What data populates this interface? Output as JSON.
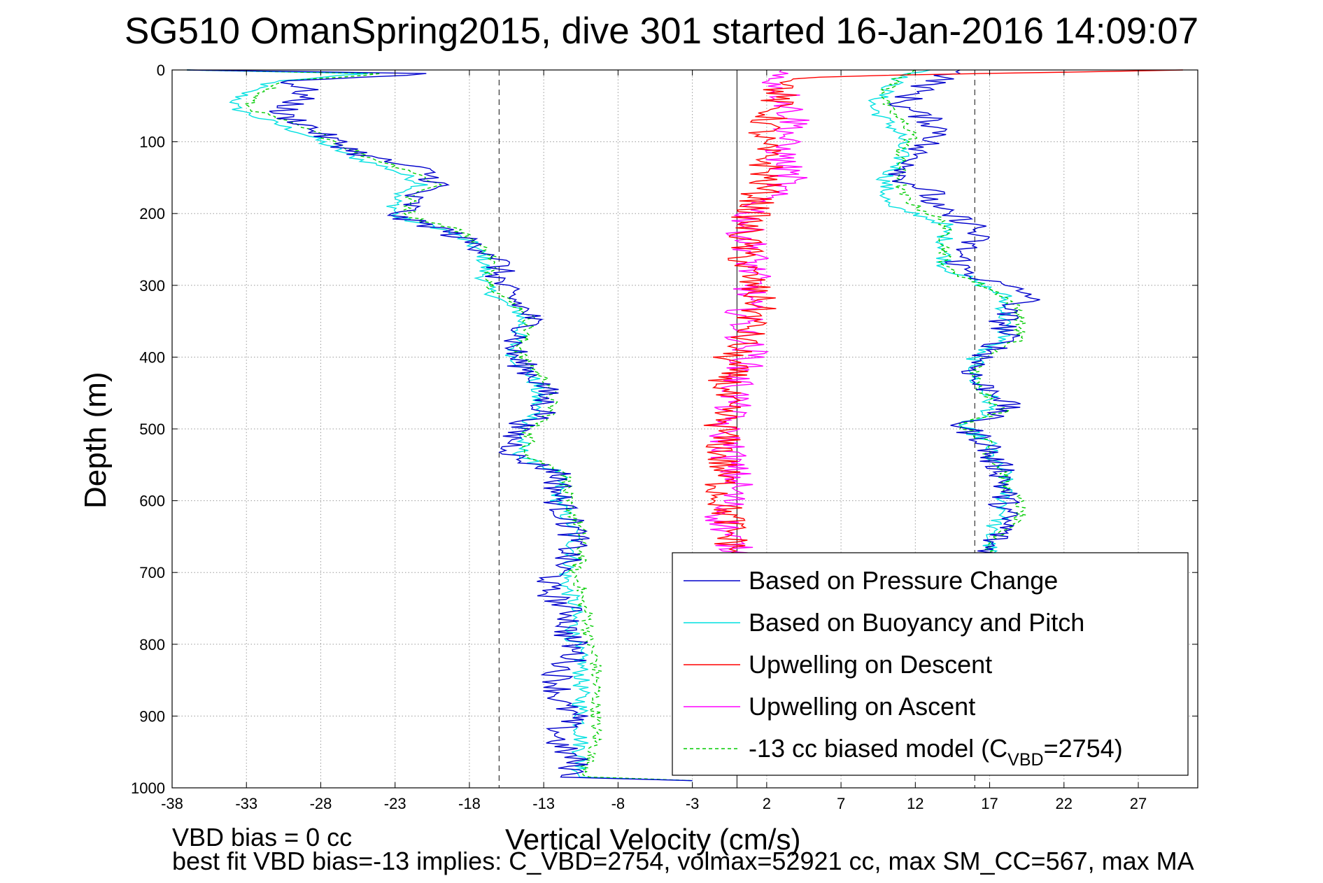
{
  "title": "SG510 OmanSpring2015, dive 301 started 16-Jan-2016 14:09:07",
  "footer": {
    "line1": "VBD bias = 0 cc",
    "line2": "best fit VBD bias=-13 implies: C_VBD=2754, volmax=52921 cc, max SM_CC=567, max MA"
  },
  "chart_data": {
    "type": "line",
    "title": "SG510 OmanSpring2015, dive 301 started 16-Jan-2016 14:09:07",
    "xlabel": "Vertical Velocity (cm/s)",
    "ylabel": "Depth (m)",
    "xlim": [
      -38,
      31
    ],
    "ylim": [
      1000,
      0
    ],
    "y_reversed": true,
    "grid": true,
    "xticks": [
      -38,
      -33,
      -28,
      -23,
      -18,
      -13,
      -8,
      -3,
      2,
      7,
      12,
      17,
      22,
      27
    ],
    "yticks": [
      0,
      100,
      200,
      300,
      400,
      500,
      600,
      700,
      800,
      900,
      1000
    ],
    "reference_lines": {
      "solid_x": [
        0
      ],
      "dashed_x": [
        -16,
        16
      ]
    },
    "legend_position": "bottom-right",
    "legend": [
      {
        "label": "Based on Pressure Change",
        "color": "#0000cc",
        "style": "solid"
      },
      {
        "label": "Based on Buoyancy and Pitch",
        "color": "#00e0e0",
        "style": "solid"
      },
      {
        "label": "Upwelling on Descent",
        "color": "#ff0000",
        "style": "solid"
      },
      {
        "label": "Upwelling on Ascent",
        "color": "#ff00ff",
        "style": "solid"
      },
      {
        "label_main": "-13 cc biased model (C",
        "label_sub": "VBD",
        "label_tail": "=2754)",
        "color": "#00cc00",
        "style": "dashed"
      }
    ],
    "series": [
      {
        "name": "Based on Pressure Change",
        "color": "#0000cc",
        "descent": {
          "depth": [
            0,
            5,
            15,
            30,
            50,
            60,
            75,
            90,
            100,
            120,
            140,
            160,
            175,
            190,
            205,
            220,
            240,
            260,
            280,
            300,
            320,
            340,
            360,
            380,
            400,
            420,
            440,
            460,
            480,
            500,
            520,
            540,
            560,
            580,
            600,
            620,
            640,
            660,
            680,
            700,
            720,
            740,
            760,
            780,
            800,
            820,
            840,
            860,
            880,
            900,
            920,
            940,
            960,
            985,
            990
          ],
          "v": [
            -37,
            -20,
            -30,
            -29,
            -30,
            -31,
            -29,
            -28,
            -27,
            -25,
            -21,
            -20,
            -22,
            -22,
            -23,
            -20,
            -18,
            -16,
            -16,
            -16,
            -15,
            -14,
            -14,
            -15,
            -15,
            -14,
            -13,
            -13,
            -13,
            -15,
            -15,
            -15,
            -12,
            -12,
            -12,
            -11.5,
            -11,
            -11,
            -11.5,
            -12,
            -13,
            -12,
            -11,
            -11.5,
            -11,
            -11,
            -12,
            -12,
            -12,
            -11,
            -12,
            -12,
            -11,
            -11,
            -3
          ]
        },
        "ascent": {
          "depth": [
            0,
            10,
            30,
            50,
            70,
            90,
            110,
            130,
            150,
            170,
            190,
            200,
            215,
            235,
            255,
            275,
            295,
            315,
            335,
            355,
            375,
            395,
            415,
            435,
            455,
            475,
            495,
            520,
            540,
            560,
            580,
            600,
            620,
            640,
            660,
            680
          ],
          "v": [
            15,
            14,
            12,
            11,
            13,
            14,
            12,
            12,
            11,
            13,
            13,
            14,
            16,
            16,
            15,
            15,
            17,
            20,
            18,
            18,
            18,
            17,
            16,
            16,
            18,
            18,
            15,
            17,
            17,
            18,
            18,
            18,
            18,
            18,
            17,
            17
          ]
        }
      },
      {
        "name": "Based on Buoyancy and Pitch",
        "color": "#00e0e0",
        "descent": {
          "depth": [
            0,
            5,
            15,
            30,
            50,
            60,
            75,
            90,
            100,
            120,
            140,
            160,
            175,
            190,
            205,
            220,
            240,
            260,
            280,
            300,
            320,
            340,
            360,
            380,
            400,
            420,
            440,
            460,
            480,
            500,
            520,
            540,
            560,
            580,
            600,
            620,
            640,
            660,
            680,
            700,
            720,
            740,
            760,
            780,
            800,
            820,
            840,
            860,
            880,
            900,
            920,
            940,
            960,
            985,
            990
          ],
          "v": [
            -37,
            -25,
            -31,
            -33,
            -34,
            -33,
            -31,
            -29,
            -28,
            -26,
            -23,
            -21,
            -23,
            -23,
            -23,
            -20,
            -18,
            -17,
            -17,
            -17,
            -16,
            -14.5,
            -14.5,
            -15,
            -15,
            -14,
            -13.5,
            -13.5,
            -13.5,
            -14.5,
            -14.5,
            -14.5,
            -12,
            -12,
            -12,
            -11.5,
            -11,
            -11,
            -11,
            -11.5,
            -11.5,
            -11,
            -11,
            -11,
            -11,
            -10.5,
            -10.5,
            -10.5,
            -10.5,
            -10.5,
            -10.5,
            -10.5,
            -10.5,
            -10.5,
            -3
          ]
        },
        "ascent": {
          "depth": [
            0,
            10,
            30,
            50,
            70,
            90,
            110,
            130,
            150,
            170,
            190,
            200,
            215,
            235,
            255,
            275,
            295,
            315,
            335,
            355,
            375,
            395,
            415,
            435,
            455,
            475,
            495,
            520,
            540,
            560,
            580,
            600,
            620,
            640,
            660,
            680
          ],
          "v": [
            13,
            11,
            10,
            9,
            10,
            11,
            11,
            11,
            10,
            10,
            10,
            12,
            14,
            14,
            14,
            14,
            16,
            18,
            18,
            18,
            18,
            16,
            16,
            16,
            17,
            17,
            15,
            17,
            17,
            18,
            18,
            18,
            18,
            17,
            17,
            17
          ]
        }
      },
      {
        "name": "Upwelling on Descent",
        "color": "#ff0000",
        "depth": [
          0,
          10,
          25,
          50,
          75,
          100,
          125,
          150,
          175,
          200,
          225,
          250,
          275,
          300,
          325,
          350,
          375,
          400,
          425,
          450,
          475,
          500,
          525,
          550,
          575,
          600,
          625,
          650,
          675
        ],
        "v": [
          30,
          5,
          3,
          2.5,
          2,
          1.5,
          2,
          2,
          1.5,
          1,
          0.5,
          0.5,
          0.5,
          1,
          1.5,
          1,
          0.5,
          -0.5,
          -0.5,
          -1,
          -1,
          -1,
          -1,
          -1,
          -1,
          -1,
          -0.5,
          -0.5,
          0
        ]
      },
      {
        "name": "Upwelling on Ascent",
        "color": "#ff00ff",
        "depth": [
          0,
          10,
          25,
          50,
          75,
          100,
          125,
          150,
          175,
          200,
          225,
          250,
          275,
          300,
          325,
          350,
          375,
          400,
          425,
          450,
          475,
          500,
          525,
          550,
          575,
          600,
          625,
          650,
          675
        ],
        "v": [
          3,
          2.5,
          3,
          3.5,
          4,
          3,
          3,
          3.5,
          2,
          1,
          0.5,
          1,
          1,
          1,
          0.5,
          0.5,
          0.5,
          1,
          0,
          0,
          -0.5,
          -1,
          -0.5,
          -0.5,
          0,
          -0.5,
          -1,
          -0.5,
          0
        ]
      },
      {
        "name": "-13 cc biased model (C_VBD=2754)",
        "color": "#00cc00",
        "descent": {
          "depth": [
            0,
            5,
            15,
            30,
            50,
            60,
            75,
            90,
            100,
            120,
            140,
            160,
            175,
            190,
            205,
            220,
            240,
            260,
            280,
            300,
            320,
            340,
            360,
            380,
            400,
            420,
            440,
            460,
            480,
            500,
            520,
            540,
            560,
            580,
            600,
            620,
            640,
            660,
            680,
            700,
            720,
            740,
            760,
            780,
            800,
            820,
            840,
            860,
            880,
            900,
            920,
            940,
            960,
            985,
            990
          ],
          "v": [
            -37,
            -24,
            -30,
            -32,
            -33,
            -32,
            -30,
            -28,
            -27,
            -25,
            -22,
            -20,
            -22,
            -22,
            -22,
            -19,
            -17.5,
            -16.5,
            -16.5,
            -16.5,
            -15.5,
            -14,
            -14,
            -14.5,
            -14.5,
            -13.5,
            -12.5,
            -12.5,
            -12.5,
            -14,
            -14,
            -14,
            -11.5,
            -11.5,
            -11.5,
            -11,
            -10.5,
            -10.5,
            -10.5,
            -11,
            -10.5,
            -10.5,
            -10,
            -10,
            -10,
            -9.5,
            -9.5,
            -9.5,
            -9.5,
            -9.5,
            -9.5,
            -9.5,
            -10,
            -10,
            -3
          ]
        },
        "ascent": {
          "depth": [
            0,
            10,
            30,
            50,
            70,
            90,
            110,
            130,
            150,
            170,
            190,
            200,
            215,
            235,
            255,
            275,
            295,
            315,
            335,
            355,
            375,
            395,
            415,
            435,
            455,
            475,
            495,
            520,
            540,
            560,
            580,
            600,
            620,
            640,
            660,
            680
          ],
          "v": [
            12,
            11,
            10,
            10,
            11,
            12,
            11,
            11,
            11,
            11,
            12,
            13,
            14,
            14,
            14,
            14,
            16,
            18,
            19,
            19,
            19,
            17,
            16,
            16,
            17,
            18,
            15,
            17,
            17,
            18,
            18,
            19,
            19,
            18,
            17,
            17
          ]
        }
      }
    ]
  }
}
